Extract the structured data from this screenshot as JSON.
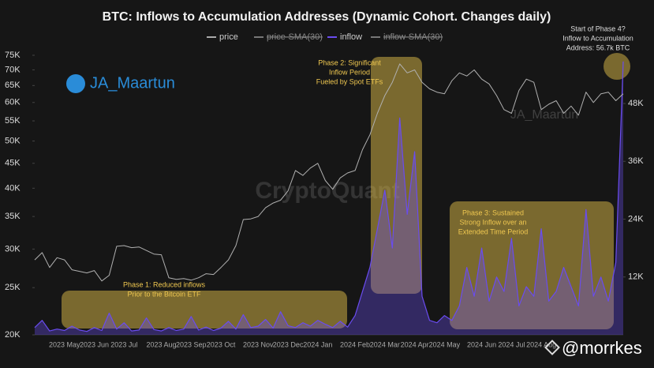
{
  "chart_data": {
    "type": "line",
    "title": "BTC: Inflows to Accumulation Addresses (Dynamic Cohort. Changes daily)",
    "legend": [
      {
        "name": "price",
        "color": "#aaaaaa",
        "hidden": false
      },
      {
        "name": "price-SMA(30)",
        "color": "#777777",
        "hidden": true
      },
      {
        "name": "inflow",
        "color": "#6a4cf0",
        "hidden": false
      },
      {
        "name": "inflow-SMA(30)",
        "color": "#777777",
        "hidden": true
      }
    ],
    "categories": [
      null,
      null,
      null,
      null,
      "2023 May",
      null,
      null,
      null,
      "2023 Jun",
      null,
      null,
      null,
      "2023 Jul",
      null,
      null,
      null,
      null,
      "2023 Aug",
      null,
      null,
      null,
      "2023 Sep",
      null,
      null,
      null,
      "2023 Oct",
      null,
      null,
      null,
      null,
      "2023 Nov",
      null,
      null,
      null,
      "2023 Dec",
      null,
      null,
      null,
      "2024 Jan",
      null,
      null,
      null,
      null,
      "2024 Feb",
      null,
      null,
      null,
      "2024 Mar",
      null,
      null,
      null,
      "2024 Apr",
      null,
      null,
      null,
      "2024 May",
      null,
      null,
      null,
      null,
      "2024 Jun",
      null,
      null,
      null,
      "2024 Jul",
      null,
      null,
      null,
      "2024 Aug",
      null,
      null,
      null,
      null,
      null,
      null,
      null,
      null,
      null,
      null,
      null
    ],
    "series": [
      {
        "name": "price",
        "color": "#b0b0b0",
        "values": [
          28500,
          29500,
          27500,
          28800,
          28500,
          27200,
          27000,
          26800,
          27100,
          25800,
          26500,
          30400,
          30500,
          30200,
          30300,
          29800,
          29300,
          29200,
          26200,
          26000,
          26100,
          25900,
          26200,
          26700,
          26600,
          27500,
          28500,
          30500,
          34500,
          34600,
          35000,
          36500,
          37300,
          37800,
          39500,
          43500,
          42500,
          44000,
          45000,
          41500,
          39800,
          42000,
          43000,
          43500,
          48000,
          51500,
          57000,
          62000,
          66000,
          72000,
          69000,
          70000,
          66000,
          64000,
          63000,
          62500,
          66500,
          69000,
          68000,
          70000,
          67000,
          65500,
          62000,
          58000,
          57000,
          63500,
          67000,
          66000,
          58000,
          59500,
          60500,
          57000,
          59000,
          56500,
          63000,
          60000,
          62500,
          63000,
          60500,
          62500
        ]
      },
      {
        "name": "inflow",
        "color": "#6a4cf0",
        "axis": "y2",
        "values": [
          1500,
          3000,
          800,
          1200,
          900,
          1800,
          1000,
          700,
          1500,
          900,
          4500,
          1200,
          2500,
          800,
          1000,
          3500,
          1100,
          800,
          1500,
          900,
          1200,
          3800,
          1000,
          1600,
          900,
          1400,
          2800,
          1200,
          4200,
          1500,
          1800,
          3200,
          1400,
          4800,
          1900,
          1500,
          2500,
          1800,
          3000,
          2200,
          1500,
          2800,
          1600,
          4000,
          9000,
          14000,
          22000,
          30000,
          18000,
          45000,
          25000,
          38000,
          8000,
          3000,
          2500,
          4000,
          3000,
          6000,
          14000,
          8000,
          18000,
          7000,
          12000,
          9000,
          20000,
          6000,
          10000,
          8000,
          22000,
          7000,
          9000,
          14000,
          10000,
          6000,
          26000,
          8000,
          12000,
          7000,
          15000,
          56700
        ]
      }
    ],
    "ylim": [
      20000,
      75000
    ],
    "log_y": true,
    "yticks": [
      {
        "value": 20000,
        "label": "20K"
      },
      {
        "value": 25000,
        "label": "25K"
      },
      {
        "value": 30000,
        "label": "30K"
      },
      {
        "value": 35000,
        "label": "35K"
      },
      {
        "value": 40000,
        "label": "40K"
      },
      {
        "value": 45000,
        "label": "45K"
      },
      {
        "value": 50000,
        "label": "50K"
      },
      {
        "value": 55000,
        "label": "55K"
      },
      {
        "value": 60000,
        "label": "60K"
      },
      {
        "value": 65000,
        "label": "65K"
      },
      {
        "value": 70000,
        "label": "70K"
      },
      {
        "value": 75000,
        "label": "75K"
      }
    ],
    "y2lim": [
      0,
      58000
    ],
    "y2ticks": [
      {
        "value": 12000,
        "label": "12K"
      },
      {
        "value": 24000,
        "label": "24K"
      },
      {
        "value": 36000,
        "label": "36K"
      },
      {
        "value": 48000,
        "label": "48K"
      }
    ],
    "annotations": [
      {
        "lines": [
          "Phase 1: Reduced inflows",
          "Prior to the Bitcoin ETF"
        ]
      },
      {
        "lines": [
          "Phase 2: Significant",
          "Inflow Period",
          "Fueled by Spot ETFs"
        ]
      },
      {
        "lines": [
          "Phase 3: Sustained",
          "Strong Inflow over an",
          "Extended Time Period"
        ]
      },
      {
        "lines": [
          "Start of Phase 4?",
          "Inflow to Accumulation",
          "Address: 56.7k BTC"
        ]
      }
    ],
    "watermarks": [
      "JA_Maartun",
      "CryptoQuant",
      "JA_Maartun",
      "@morrkes"
    ]
  }
}
